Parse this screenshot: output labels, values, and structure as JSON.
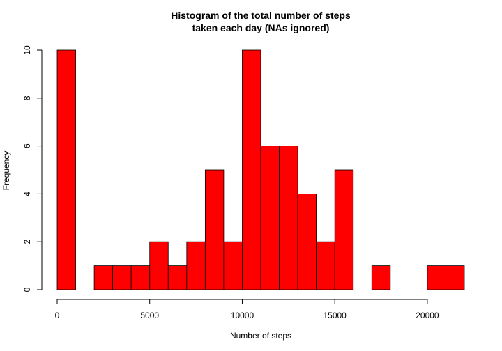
{
  "chart_data": {
    "type": "bar",
    "title": [
      "Histogram of the total number of steps",
      "taken each day (NAs ignored)"
    ],
    "xlabel": "Number of steps",
    "ylabel": "Frequency",
    "bin_width": 1000,
    "xlim": [
      0,
      22000
    ],
    "ylim": [
      0,
      10
    ],
    "x_ticks": [
      0,
      5000,
      10000,
      15000,
      20000
    ],
    "x_tick_labels": [
      "0",
      "5000",
      "10000",
      "15000",
      "20000"
    ],
    "y_ticks": [
      0,
      2,
      4,
      6,
      8,
      10
    ],
    "y_tick_labels": [
      "0",
      "2",
      "4",
      "6",
      "8",
      "10"
    ],
    "bins": [
      {
        "start": 0,
        "end": 1000,
        "count": 10
      },
      {
        "start": 1000,
        "end": 2000,
        "count": 0
      },
      {
        "start": 2000,
        "end": 3000,
        "count": 1
      },
      {
        "start": 3000,
        "end": 4000,
        "count": 1
      },
      {
        "start": 4000,
        "end": 5000,
        "count": 1
      },
      {
        "start": 5000,
        "end": 6000,
        "count": 2
      },
      {
        "start": 6000,
        "end": 7000,
        "count": 1
      },
      {
        "start": 7000,
        "end": 8000,
        "count": 2
      },
      {
        "start": 8000,
        "end": 9000,
        "count": 5
      },
      {
        "start": 9000,
        "end": 10000,
        "count": 2
      },
      {
        "start": 10000,
        "end": 11000,
        "count": 10
      },
      {
        "start": 11000,
        "end": 12000,
        "count": 6
      },
      {
        "start": 12000,
        "end": 13000,
        "count": 6
      },
      {
        "start": 13000,
        "end": 14000,
        "count": 4
      },
      {
        "start": 14000,
        "end": 15000,
        "count": 2
      },
      {
        "start": 15000,
        "end": 16000,
        "count": 5
      },
      {
        "start": 16000,
        "end": 17000,
        "count": 0
      },
      {
        "start": 17000,
        "end": 18000,
        "count": 1
      },
      {
        "start": 18000,
        "end": 19000,
        "count": 0
      },
      {
        "start": 19000,
        "end": 20000,
        "count": 0
      },
      {
        "start": 20000,
        "end": 21000,
        "count": 1
      },
      {
        "start": 21000,
        "end": 22000,
        "count": 1
      }
    ],
    "bar_color": "#ff0000",
    "bar_edge_color": "#000000"
  }
}
